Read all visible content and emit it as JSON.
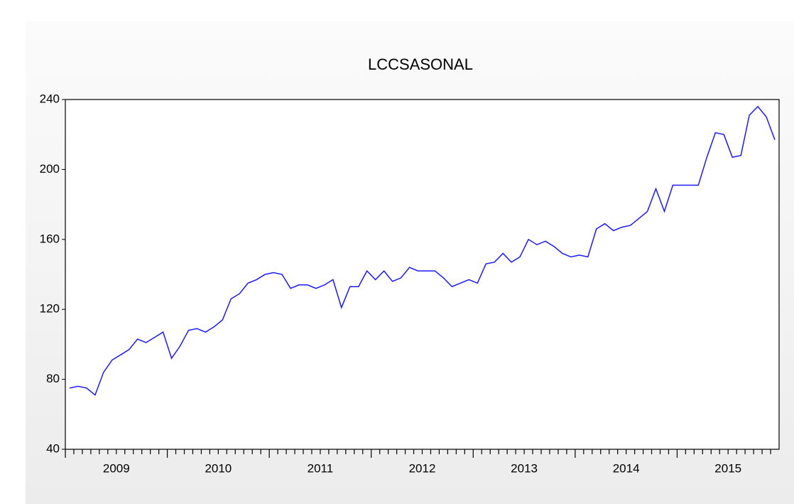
{
  "chart_data": {
    "type": "line",
    "title": "LCCSASONAL",
    "categories": [
      "2009",
      null,
      null,
      null,
      null,
      null,
      null,
      null,
      null,
      null,
      null,
      null,
      "2010",
      null,
      null,
      null,
      null,
      null,
      null,
      null,
      null,
      null,
      null,
      null,
      "2011",
      null,
      null,
      null,
      null,
      null,
      null,
      null,
      null,
      null,
      null,
      null,
      "2012",
      null,
      null,
      null,
      null,
      null,
      null,
      null,
      null,
      null,
      null,
      null,
      "2013",
      null,
      null,
      null,
      null,
      null,
      null,
      null,
      null,
      null,
      null,
      null,
      "2014",
      null,
      null,
      null,
      null,
      null,
      null,
      null,
      null,
      null,
      null,
      null,
      "2015",
      null,
      null,
      null,
      null,
      null,
      null,
      null,
      null,
      null,
      null,
      null
    ],
    "series": [
      {
        "name": "LCCSASONAL",
        "color": "#1a1aff",
        "values": [
          75,
          76,
          75,
          71,
          84,
          91,
          94,
          97,
          103,
          101,
          104,
          107,
          92,
          99,
          108,
          109,
          107,
          110,
          114,
          126,
          129,
          135,
          137,
          140,
          141,
          140,
          132,
          134,
          134,
          132,
          134,
          137,
          121,
          133,
          133,
          142,
          137,
          142,
          136,
          138,
          144,
          142,
          142,
          142,
          138,
          133,
          135,
          137,
          135,
          146,
          147,
          152,
          147,
          150,
          160,
          157,
          159,
          156,
          152,
          150,
          151,
          150,
          166,
          169,
          165,
          167,
          168,
          172,
          176,
          189,
          176,
          191,
          191,
          191,
          191,
          207,
          221,
          220,
          207,
          208,
          231,
          236,
          230,
          217
        ]
      }
    ],
    "ylim": [
      40,
      240
    ],
    "yticks": [
      40,
      80,
      120,
      160,
      200,
      240
    ]
  }
}
